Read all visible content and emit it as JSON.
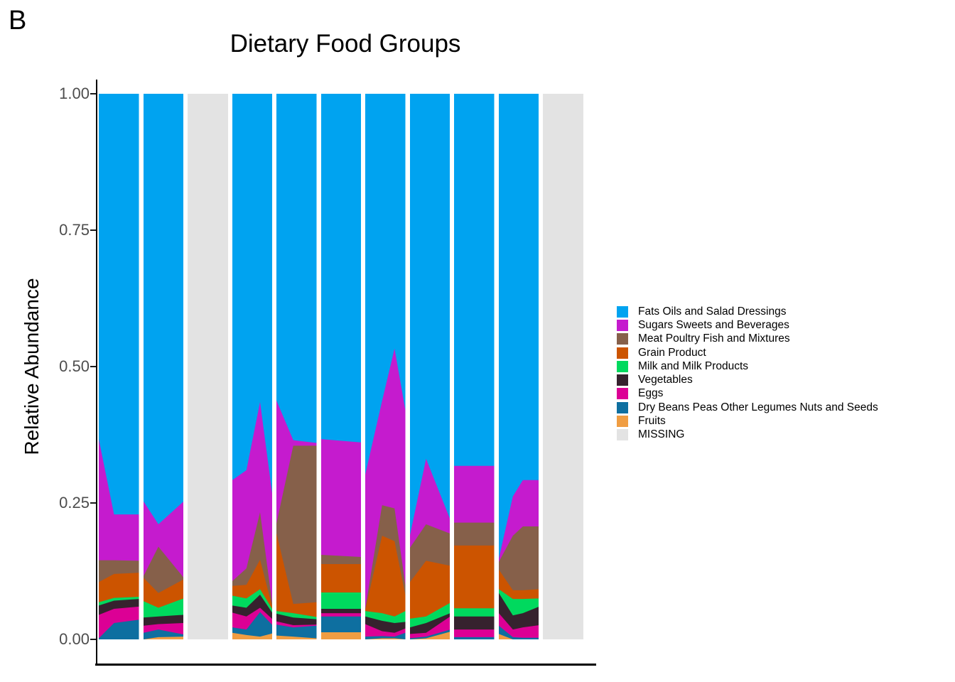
{
  "panel_label": "B",
  "title": "Dietary Food Groups",
  "y_axis": {
    "label": "Relative Abundance",
    "ticks": [
      {
        "label": "1.00",
        "value": 1.0
      },
      {
        "label": "0.75",
        "value": 0.75
      },
      {
        "label": "0.50",
        "value": 0.5
      },
      {
        "label": "0.25",
        "value": 0.25
      },
      {
        "label": "0.00",
        "value": 0.0
      }
    ]
  },
  "legend": {
    "entries": [
      {
        "label": "Fats Oils and Salad Dressings",
        "color": "#00A3F0"
      },
      {
        "label": "Sugars Sweets and Beverages",
        "color": "#C51BCE"
      },
      {
        "label": "Meat Poultry Fish and Mixtures",
        "color": "#86604A"
      },
      {
        "label": "Grain Product",
        "color": "#CC5400"
      },
      {
        "label": "Milk and Milk Products",
        "color": "#00D95E"
      },
      {
        "label": "Vegetables",
        "color": "#36222E"
      },
      {
        "label": "Eggs",
        "color": "#DC0095"
      },
      {
        "label": "Dry Beans Peas Other Legumes Nuts and Seeds",
        "color": "#0E6FA0"
      },
      {
        "label": "Fruits",
        "color": "#F09D42"
      },
      {
        "label": "MISSING",
        "color": "#E3E3E3"
      }
    ]
  },
  "chart_data": {
    "type": "area",
    "title": "Dietary Food Groups",
    "ylabel": "Relative Abundance",
    "ylim": [
      0,
      1
    ],
    "grid": false,
    "legend_position": "right",
    "stack_order_bottom_to_top": [
      "Fruits",
      "Dry Beans Peas Other Legumes Nuts and Seeds",
      "Eggs",
      "Vegetables",
      "Milk and Milk Products",
      "Grain Product",
      "Meat Poultry Fish and Mixtures",
      "Sugars Sweets and Beverages",
      "Fats Oils and Salad Dressings"
    ],
    "colors_bottom_to_top": [
      "#F09D42",
      "#0E6FA0",
      "#DC0095",
      "#36222E",
      "#00D95E",
      "#CC5400",
      "#86604A",
      "#C51BCE",
      "#00A3F0"
    ],
    "missing_color": "#E3E3E3",
    "note": "Each column is one subject; points give cumulative stacked tops (relative abundance 0-1) for the 8 lower layers at fractional x positions within the column; the top layer (Fats Oils and Salad Dressings) fills to 1.0. Columns marked missing are fully MISSING (grey).",
    "columns": [
      {
        "status": "data",
        "points": [
          {
            "x": 0.0,
            "cum": [
              0.0,
              0.002,
              0.045,
              0.062,
              0.068,
              0.105,
              0.145,
              0.367
            ]
          },
          {
            "x": 0.38,
            "cum": [
              0.0,
              0.03,
              0.056,
              0.071,
              0.076,
              0.12,
              0.145,
              0.229
            ]
          },
          {
            "x": 1.0,
            "cum": [
              0.0,
              0.036,
              0.06,
              0.074,
              0.078,
              0.122,
              0.144,
              0.229
            ]
          }
        ]
      },
      {
        "status": "data",
        "points": [
          {
            "x": 0.0,
            "cum": [
              0.0,
              0.012,
              0.025,
              0.04,
              0.07,
              0.113,
              0.116,
              0.253
            ]
          },
          {
            "x": 0.37,
            "cum": [
              0.004,
              0.018,
              0.028,
              0.042,
              0.058,
              0.085,
              0.17,
              0.211
            ]
          },
          {
            "x": 1.0,
            "cum": [
              0.005,
              0.009,
              0.03,
              0.045,
              0.075,
              0.11,
              0.113,
              0.253
            ]
          }
        ]
      },
      {
        "status": "missing"
      },
      {
        "status": "data",
        "points": [
          {
            "x": 0.0,
            "cum": [
              0.012,
              0.022,
              0.049,
              0.062,
              0.08,
              0.098,
              0.107,
              0.292
            ]
          },
          {
            "x": 0.35,
            "cum": [
              0.008,
              0.018,
              0.042,
              0.058,
              0.075,
              0.1,
              0.13,
              0.31
            ]
          },
          {
            "x": 0.69,
            "cum": [
              0.005,
              0.05,
              0.058,
              0.082,
              0.092,
              0.146,
              0.233,
              0.435
            ]
          },
          {
            "x": 1.0,
            "cum": [
              0.011,
              0.026,
              0.037,
              0.048,
              0.055,
              0.058,
              0.062,
              0.263
            ]
          }
        ]
      },
      {
        "status": "data",
        "points": [
          {
            "x": 0.0,
            "cum": [
              0.007,
              0.027,
              0.033,
              0.047,
              0.052,
              0.195,
              0.212,
              0.438
            ]
          },
          {
            "x": 0.42,
            "cum": [
              0.005,
              0.022,
              0.026,
              0.04,
              0.048,
              0.065,
              0.355,
              0.365
            ]
          },
          {
            "x": 1.0,
            "cum": [
              0.002,
              0.025,
              0.027,
              0.037,
              0.041,
              0.068,
              0.355,
              0.36
            ]
          }
        ]
      },
      {
        "status": "data",
        "points": [
          {
            "x": 0.0,
            "cum": [
              0.013,
              0.042,
              0.048,
              0.056,
              0.086,
              0.138,
              0.155,
              0.367
            ]
          },
          {
            "x": 1.0,
            "cum": [
              0.013,
              0.042,
              0.048,
              0.056,
              0.086,
              0.138,
              0.151,
              0.361
            ]
          }
        ]
      },
      {
        "status": "data",
        "points": [
          {
            "x": 0.0,
            "cum": [
              0.0,
              0.005,
              0.028,
              0.042,
              0.052,
              0.054,
              0.056,
              0.302
            ]
          },
          {
            "x": 0.42,
            "cum": [
              0.002,
              0.006,
              0.015,
              0.034,
              0.048,
              0.19,
              0.246,
              0.437
            ]
          },
          {
            "x": 0.73,
            "cum": [
              0.002,
              0.005,
              0.012,
              0.03,
              0.042,
              0.18,
              0.24,
              0.533
            ]
          },
          {
            "x": 1.0,
            "cum": [
              0.0,
              0.012,
              0.02,
              0.032,
              0.052,
              0.081,
              0.099,
              0.42
            ]
          }
        ]
      },
      {
        "status": "data",
        "points": [
          {
            "x": 0.0,
            "cum": [
              0.0,
              0.002,
              0.01,
              0.022,
              0.038,
              0.105,
              0.168,
              0.191
            ]
          },
          {
            "x": 0.4,
            "cum": [
              0.002,
              0.005,
              0.012,
              0.03,
              0.042,
              0.144,
              0.211,
              0.331
            ]
          },
          {
            "x": 1.0,
            "cum": [
              0.014,
              0.018,
              0.042,
              0.048,
              0.067,
              0.135,
              0.194,
              0.22
            ]
          }
        ]
      },
      {
        "status": "data",
        "points": [
          {
            "x": 0.0,
            "cum": [
              0.0,
              0.004,
              0.018,
              0.042,
              0.057,
              0.172,
              0.214,
              0.318
            ]
          },
          {
            "x": 1.0,
            "cum": [
              0.0,
              0.004,
              0.018,
              0.042,
              0.057,
              0.172,
              0.214,
              0.318
            ]
          }
        ]
      },
      {
        "status": "data",
        "points": [
          {
            "x": 0.0,
            "cum": [
              0.01,
              0.025,
              0.048,
              0.085,
              0.092,
              0.128,
              0.142,
              0.148
            ]
          },
          {
            "x": 0.35,
            "cum": [
              0.0,
              0.004,
              0.018,
              0.044,
              0.074,
              0.09,
              0.19,
              0.262
            ]
          },
          {
            "x": 0.6,
            "cum": [
              0.0,
              0.003,
              0.022,
              0.048,
              0.074,
              0.09,
              0.207,
              0.292
            ]
          },
          {
            "x": 1.0,
            "cum": [
              0.0,
              0.003,
              0.026,
              0.06,
              0.075,
              0.092,
              0.207,
              0.292
            ]
          }
        ]
      },
      {
        "status": "missing"
      }
    ]
  }
}
